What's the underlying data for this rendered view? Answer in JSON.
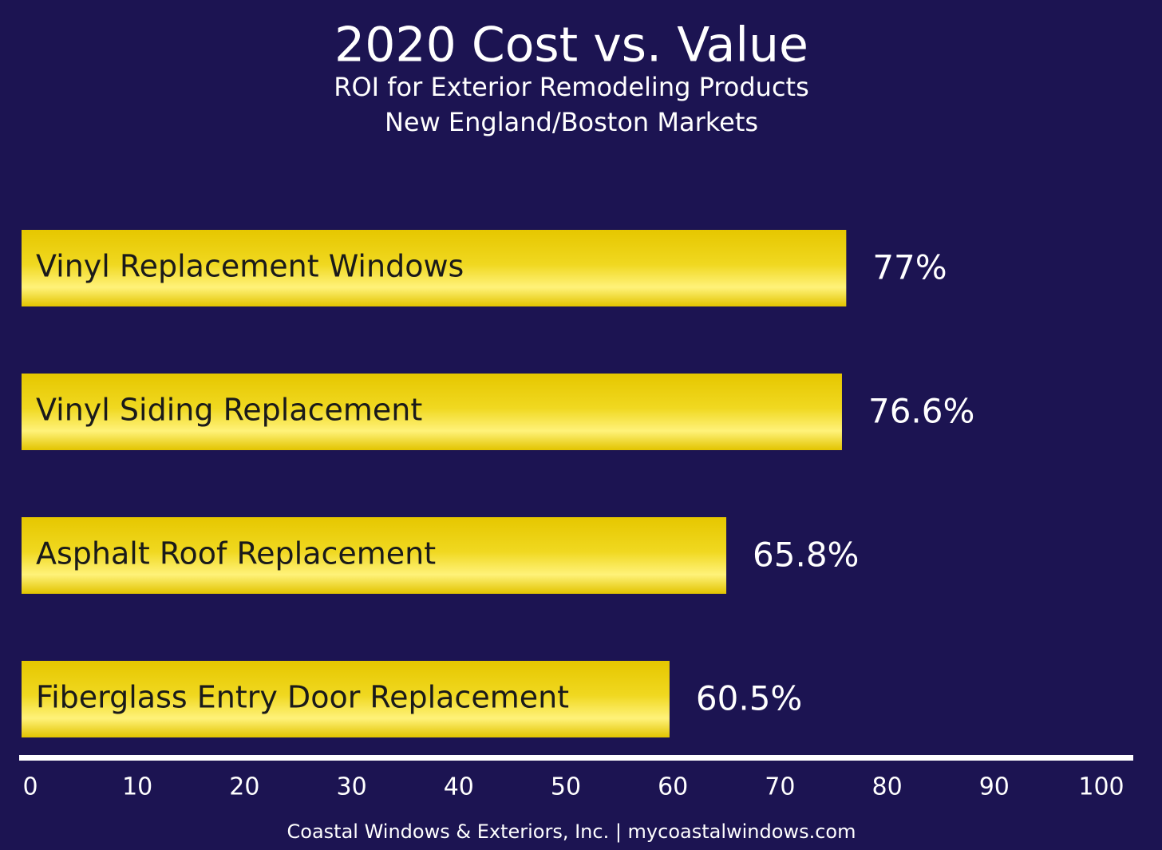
{
  "chart_data": {
    "type": "bar",
    "orientation": "horizontal",
    "title": "2020 Cost vs. Value",
    "subtitle": [
      "ROI for Exterior Remodeling Products",
      "New England/Boston Markets"
    ],
    "categories": [
      "Vinyl Replacement Windows",
      "Vinyl Siding Replacement",
      "Asphalt Roof Replacement",
      "Fiberglass Entry Door Replacement"
    ],
    "values": [
      77,
      76.6,
      65.8,
      60.5
    ],
    "value_labels": [
      "77%",
      "76.6%",
      "65.8%",
      "60.5%"
    ],
    "color": "#e8cb00",
    "xlim": [
      0,
      100
    ],
    "xticks": [
      0,
      10,
      20,
      30,
      40,
      50,
      60,
      70,
      80,
      90,
      100
    ],
    "source": "Coastal Windows & Exteriors, Inc.  | mycoastalwindows.com"
  }
}
